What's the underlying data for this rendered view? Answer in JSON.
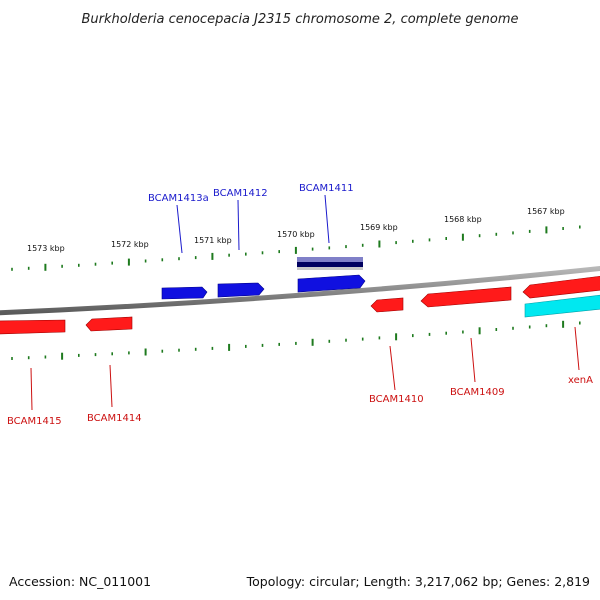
{
  "title": "Burkholderia cenocepacia J2315 chromosome 2, complete genome",
  "footer": {
    "accession": "Accession: NC_011001",
    "summary": "Topology: circular; Length: 3,217,062 bp; Genes: 2,819"
  },
  "colors": {
    "forward_gene": "#1010e0",
    "reverse_gene": "#ff1a1a",
    "highlight_gene": "#00e0e8",
    "rna_feature": "#2a1f8a",
    "tick": "#1e7a1e",
    "backbone": "#888888",
    "forward_label": "#1a1acc",
    "reverse_label": "#cc1111"
  },
  "kbp_labels": [
    "1573 kbp",
    "1572 kbp",
    "1571 kbp",
    "1570 kbp",
    "1569 kbp",
    "1568 kbp",
    "1567 kbp"
  ],
  "genes": [
    {
      "id": "BCAM1415",
      "label": "BCAM1415",
      "strand": "reverse"
    },
    {
      "id": "BCAM1414",
      "label": "BCAM1414",
      "strand": "reverse"
    },
    {
      "id": "BCAM1413a",
      "label": "BCAM1413a",
      "strand": "forward"
    },
    {
      "id": "BCAM1412",
      "label": "BCAM1412",
      "strand": "forward"
    },
    {
      "id": "BCAM1411",
      "label": "BCAM1411",
      "strand": "forward"
    },
    {
      "id": "BCAM1410",
      "label": "BCAM1410",
      "strand": "reverse"
    },
    {
      "id": "BCAM1409",
      "label": "BCAM1409",
      "strand": "reverse"
    },
    {
      "id": "xenA",
      "label": "xenA",
      "strand": "reverse"
    }
  ]
}
